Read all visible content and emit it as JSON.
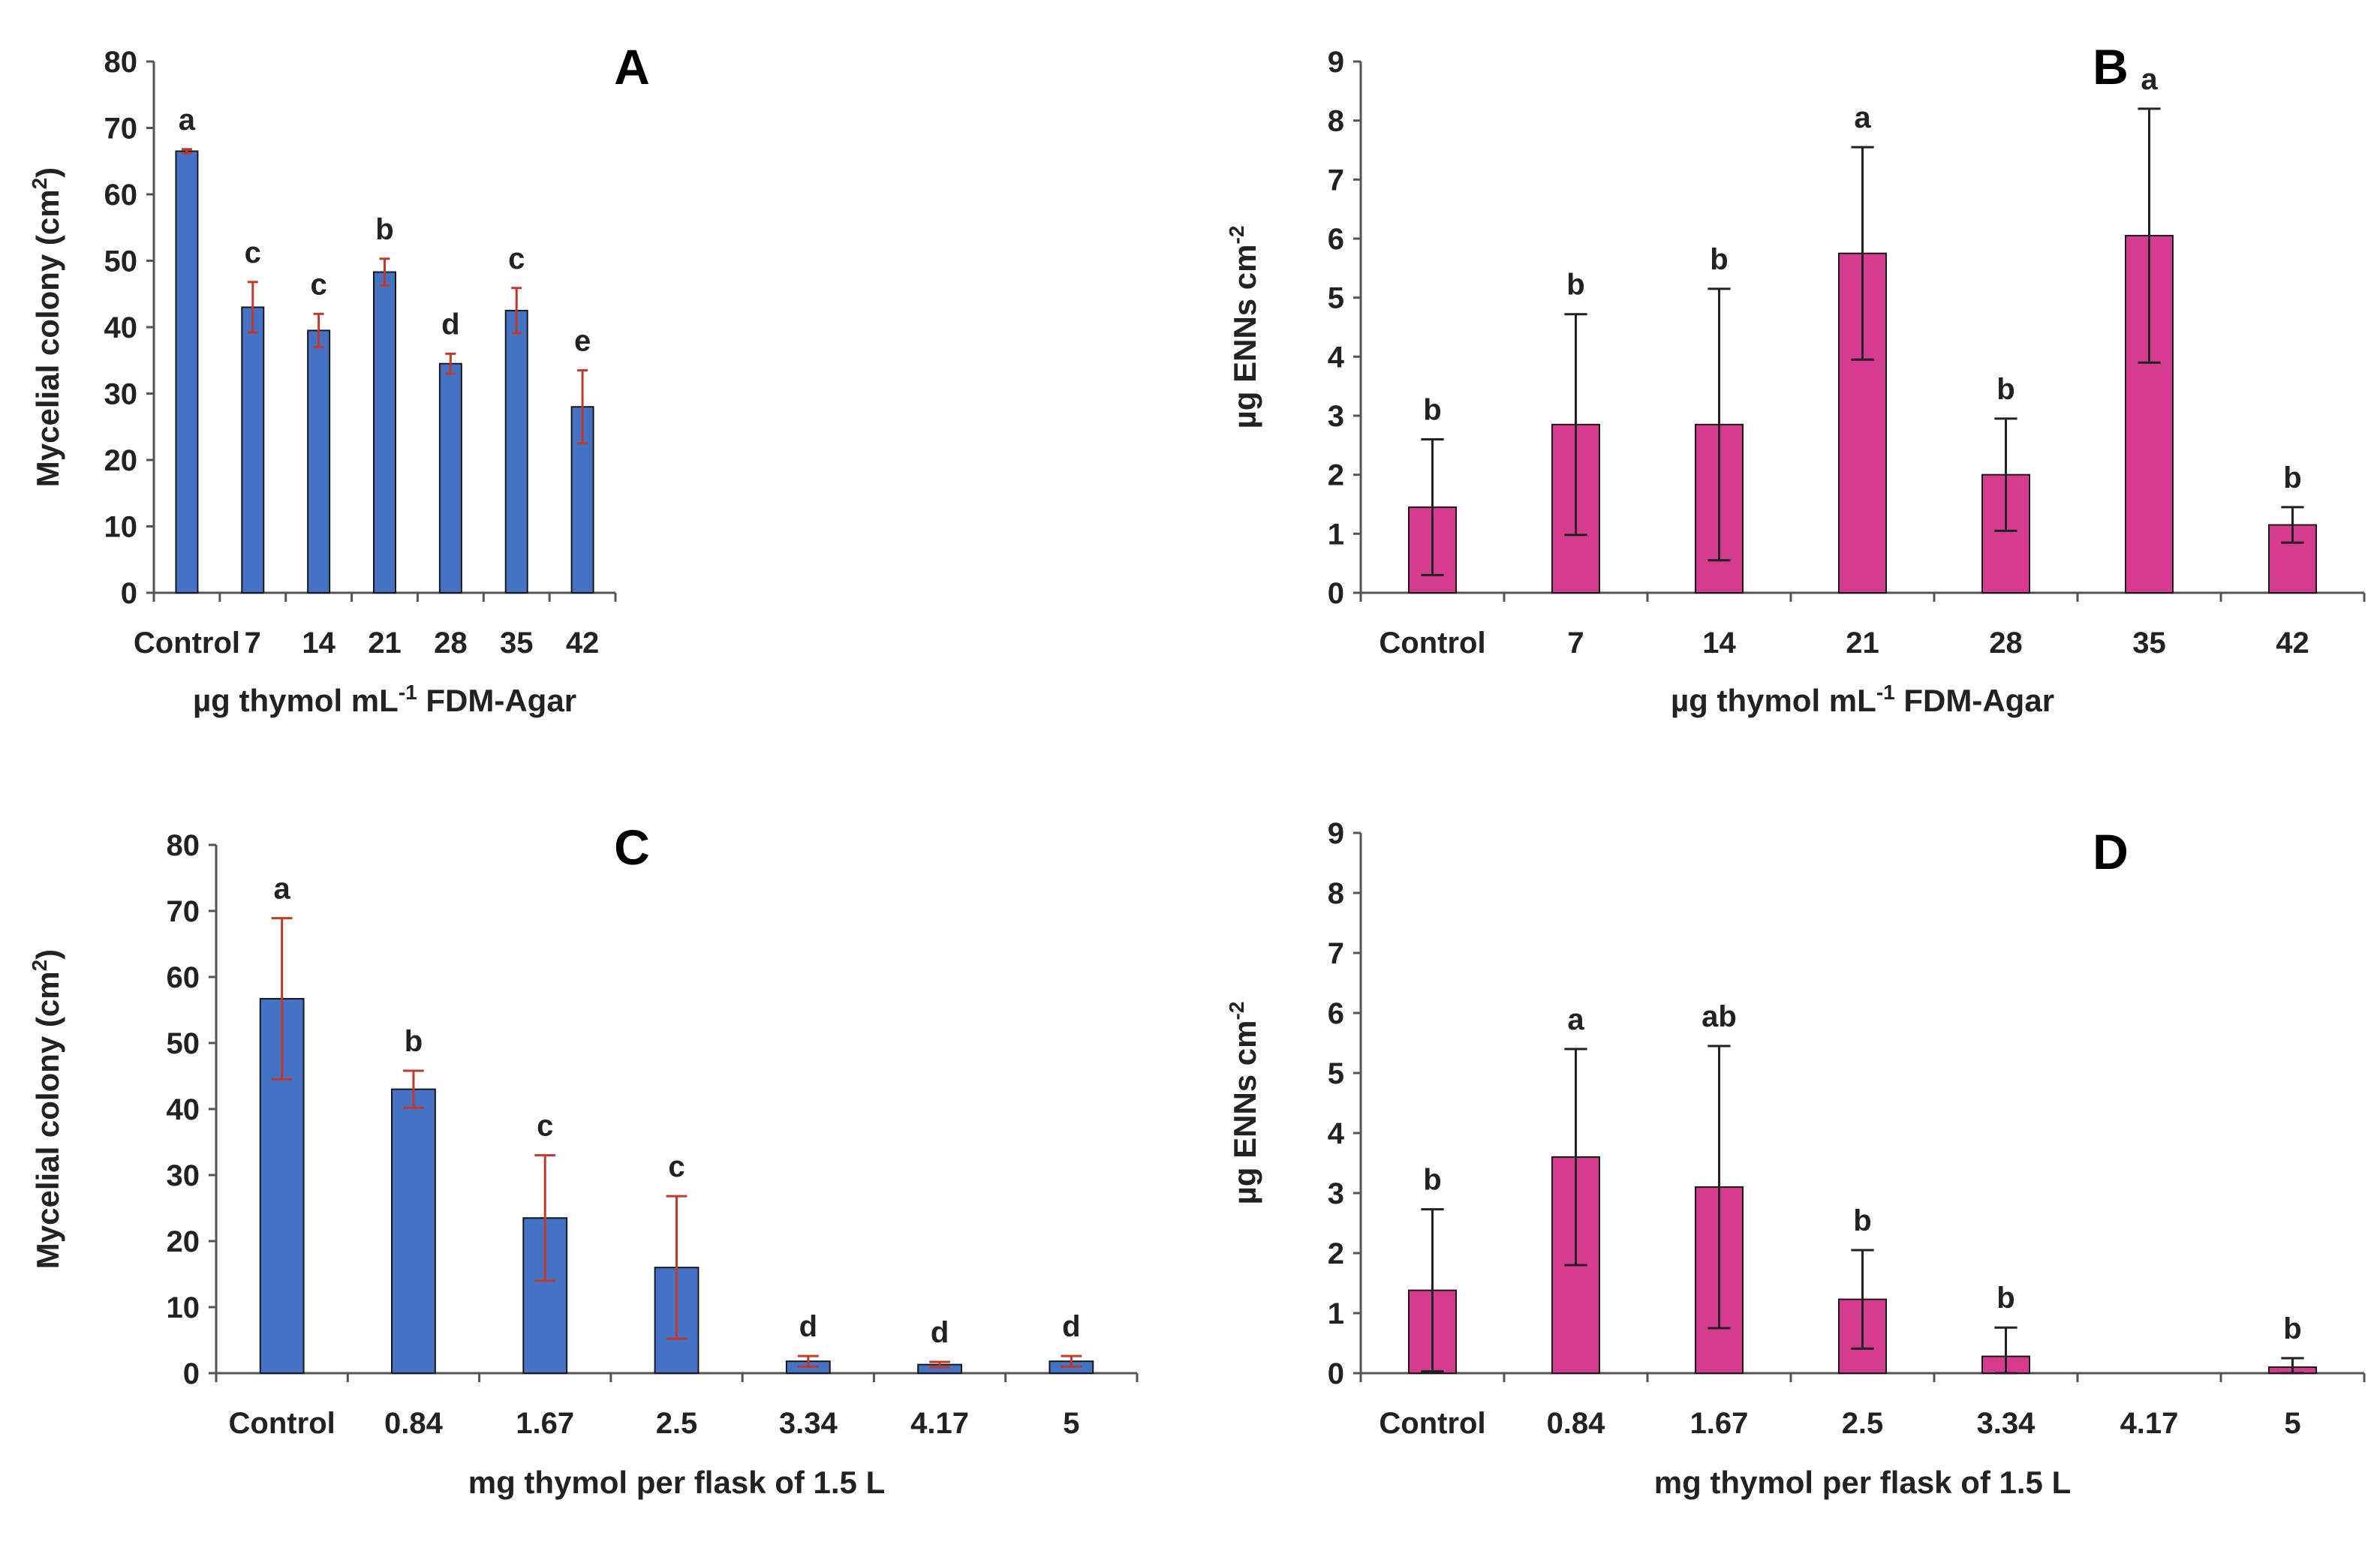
{
  "chart_data": [
    {
      "panel": "A",
      "type": "bar",
      "title": "A",
      "xlabel_parts": [
        "µg thymol mL",
        "-1",
        " FDM-Agar"
      ],
      "ylabel_parts": [
        "Mycelial colony (cm",
        "2",
        ")"
      ],
      "categories": [
        "Control",
        "7",
        "14",
        "21",
        "28",
        "35",
        "42"
      ],
      "values": [
        66.5,
        43,
        39.5,
        48.3,
        34.5,
        42.5,
        28
      ],
      "errors": [
        0.3,
        3.8,
        2.5,
        2,
        1.5,
        3.4,
        5.5
      ],
      "significance": [
        "a",
        "c",
        "c",
        "b",
        "d",
        "c",
        "e"
      ],
      "ylim": [
        0,
        80
      ],
      "yticks": [
        0,
        10,
        20,
        30,
        40,
        50,
        60,
        70,
        80
      ],
      "bar_color": "#4472C4",
      "error_color": "#C0392B"
    },
    {
      "panel": "B",
      "type": "bar",
      "title": "B",
      "xlabel_parts": [
        "µg thymol mL",
        "-1",
        " FDM-Agar"
      ],
      "ylabel_parts": [
        "µg ENNs cm",
        "-2",
        ""
      ],
      "categories": [
        "Control",
        "7",
        "14",
        "21",
        "28",
        "35",
        "42"
      ],
      "values": [
        1.45,
        2.85,
        2.85,
        5.75,
        2,
        6.05,
        1.15
      ],
      "errors": [
        1.15,
        1.87,
        2.3,
        1.8,
        0.95,
        2.15,
        0.3
      ],
      "significance": [
        "b",
        "b",
        "b",
        "a",
        "b",
        "a",
        "b"
      ],
      "ylim": [
        0,
        9
      ],
      "yticks": [
        0,
        1,
        2,
        3,
        4,
        5,
        6,
        7,
        8,
        9
      ],
      "bar_color": "#D63B8F",
      "error_color": "#222222"
    },
    {
      "panel": "C",
      "type": "bar",
      "title": "C",
      "xlabel_parts": [
        "mg thymol per flask of 1.5 L",
        "",
        ""
      ],
      "ylabel_parts": [
        "Mycelial colony (cm",
        "2",
        ")"
      ],
      "categories": [
        "Control",
        "0.84",
        "1.67",
        "2.5",
        "3.34",
        "4.17",
        "5"
      ],
      "values": [
        56.7,
        43,
        23.5,
        16,
        1.8,
        1.3,
        1.8
      ],
      "errors": [
        12.2,
        2.8,
        9.5,
        10.8,
        0.8,
        0.4,
        0.8
      ],
      "significance": [
        "a",
        "b",
        "c",
        "c",
        "d",
        "d",
        "d"
      ],
      "ylim": [
        0,
        80
      ],
      "yticks": [
        0,
        10,
        20,
        30,
        40,
        50,
        60,
        70,
        80
      ],
      "bar_color": "#4472C4",
      "error_color": "#C0392B"
    },
    {
      "panel": "D",
      "type": "bar",
      "title": "D",
      "xlabel_parts": [
        "mg thymol per flask of 1.5 L",
        "",
        ""
      ],
      "ylabel_parts": [
        "µg ENNs cm",
        "-2",
        ""
      ],
      "categories": [
        "Control",
        "0.84",
        "1.67",
        "2.5",
        "3.34",
        "4.17",
        "5"
      ],
      "values": [
        1.38,
        3.6,
        3.1,
        1.23,
        0.28,
        0,
        0.1
      ],
      "errors": [
        1.35,
        1.8,
        2.35,
        0.82,
        0.48,
        0,
        0.15
      ],
      "significance": [
        "b",
        "a",
        "ab",
        "b",
        "b",
        "",
        "b"
      ],
      "ylim": [
        0,
        9
      ],
      "yticks": [
        0,
        1,
        2,
        3,
        4,
        5,
        6,
        7,
        8,
        9
      ],
      "bar_color": "#D63B8F",
      "error_color": "#222222"
    }
  ]
}
